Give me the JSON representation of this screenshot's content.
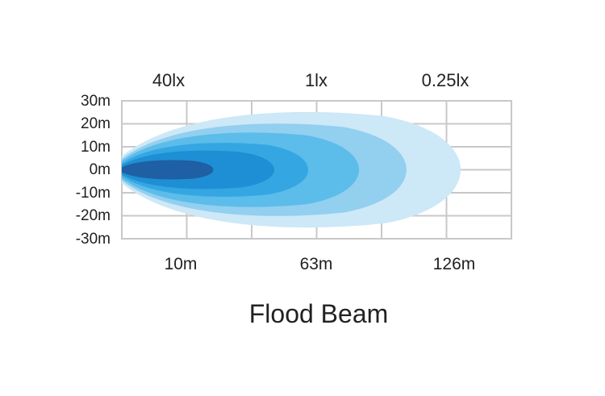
{
  "chart_data": {
    "type": "area",
    "title": "Flood Beam",
    "lux_labels": [
      "40lx",
      "1lx",
      "0.25lx"
    ],
    "y_ticks": [
      "30m",
      "20m",
      "10m",
      "0m",
      "-10m",
      "-20m",
      "-30m"
    ],
    "x_ticks": [
      "10m",
      "63m",
      "126m"
    ],
    "ylim": [
      -30,
      30
    ],
    "grid": true,
    "beam_zones": [
      {
        "reach": 0.27,
        "half_width": 0.15,
        "color": "#1f5fa3"
      },
      {
        "reach": 0.45,
        "half_width": 0.3,
        "color": "#1e8fd4"
      },
      {
        "reach": 0.55,
        "half_width": 0.42,
        "color": "#34a7e2"
      },
      {
        "reach": 0.7,
        "half_width": 0.58,
        "color": "#5cbcea"
      },
      {
        "reach": 0.84,
        "half_width": 0.72,
        "color": "#93cfef"
      },
      {
        "reach": 1.0,
        "half_width": 0.9,
        "color": "#cde8f7"
      }
    ],
    "colors": {
      "grid": "#c8c8c8",
      "text": "#222222"
    }
  }
}
